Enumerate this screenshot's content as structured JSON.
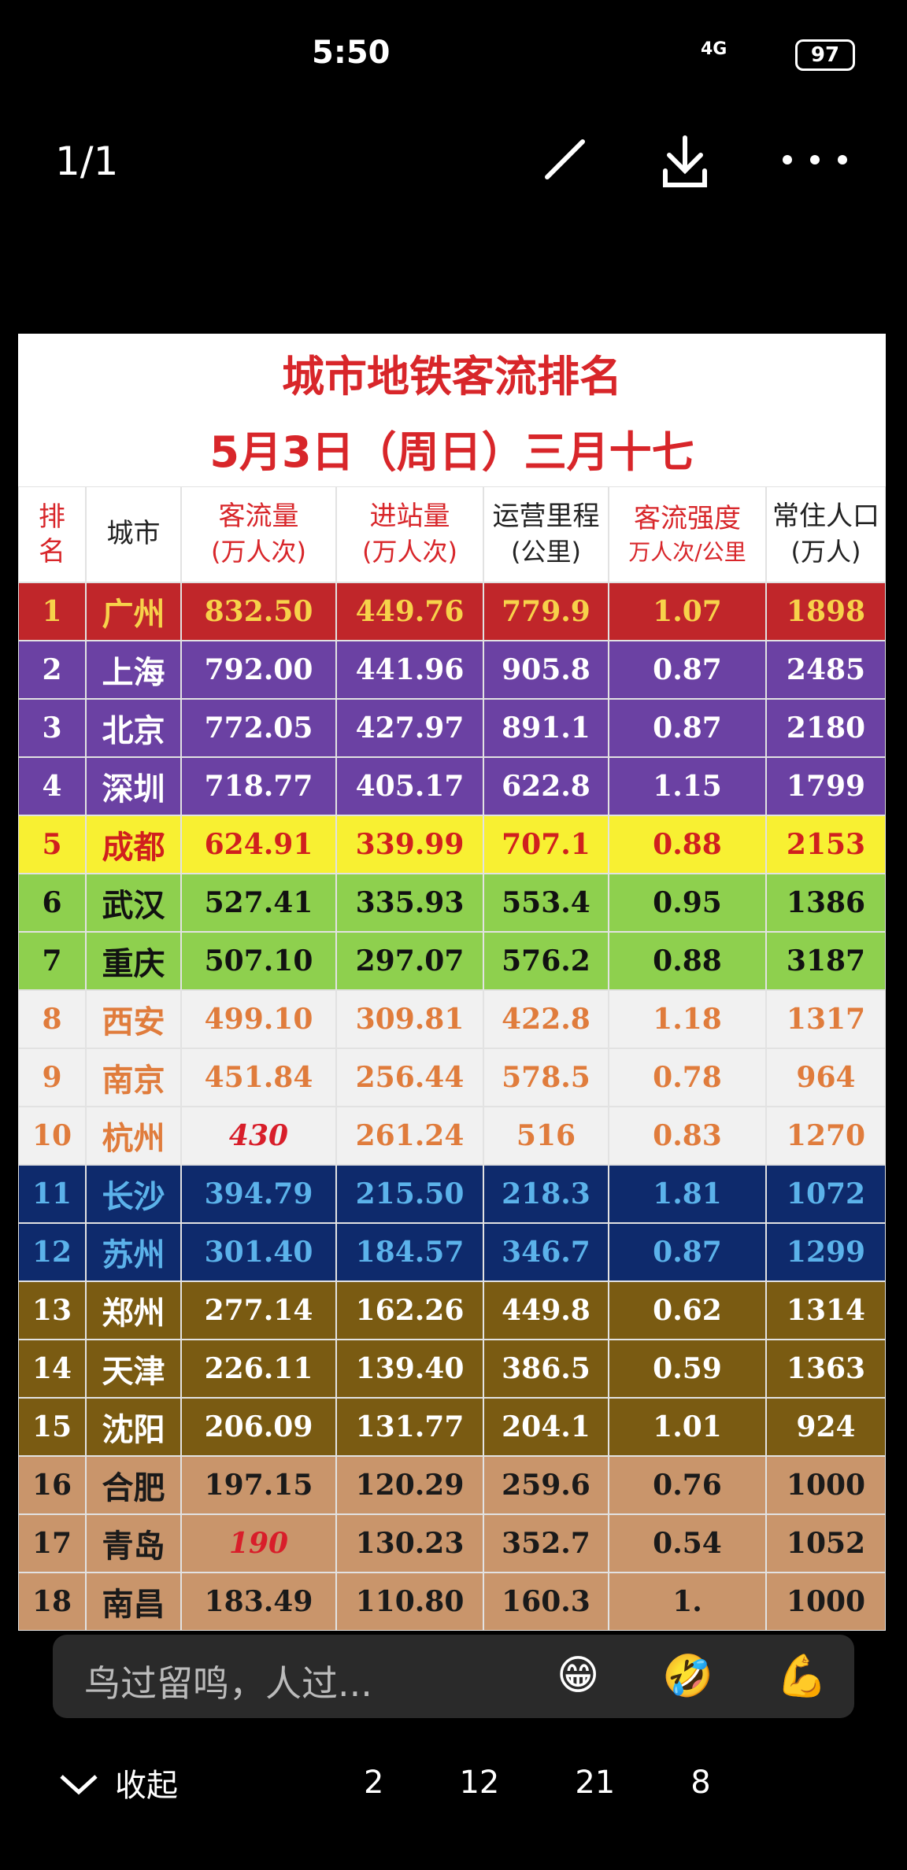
{
  "status_bar": {
    "time": "5:50",
    "network": "4G",
    "battery": "97"
  },
  "viewer": {
    "counter": "1/1"
  },
  "table": {
    "title": "城市地铁客流排名",
    "subtitle": "5月3日（周日）三月十七",
    "header": [
      {
        "text": "排名",
        "color": "#d8262a"
      },
      {
        "text": "城市",
        "color": "#222222"
      },
      {
        "text": "客流量",
        "sub": "(万人次)",
        "color": "#d8262a"
      },
      {
        "text": "进站量",
        "sub": "(万人次)",
        "color": "#d8262a"
      },
      {
        "text": "运营里程",
        "sub": "(公里)",
        "color": "#222222"
      },
      {
        "text": "客流强度",
        "sub": "万人次/公里",
        "color": "#d8262a"
      },
      {
        "text": "常住人口",
        "sub": "(万人)",
        "color": "#222222"
      }
    ],
    "rows": [
      {
        "bg": "#c0262a",
        "fg": "#f7d24a",
        "cells": [
          "1",
          "广州",
          "832.50",
          "449.76",
          "779.9",
          "1.07",
          "1898"
        ]
      },
      {
        "bg": "#6b41a3",
        "fg": "#ffffff",
        "cells": [
          "2",
          "上海",
          "792.00",
          "441.96",
          "905.8",
          "0.87",
          "2485"
        ]
      },
      {
        "bg": "#6b41a3",
        "fg": "#ffffff",
        "cells": [
          "3",
          "北京",
          "772.05",
          "427.97",
          "891.1",
          "0.87",
          "2180"
        ]
      },
      {
        "bg": "#6b41a3",
        "fg": "#ffffff",
        "cells": [
          "4",
          "深圳",
          "718.77",
          "405.17",
          "622.8",
          "1.15",
          "1799"
        ]
      },
      {
        "bg": "#f8f032",
        "fg": "#d0201e",
        "cells": [
          "5",
          "成都",
          "624.91",
          "339.99",
          "707.1",
          "0.88",
          "2153"
        ]
      },
      {
        "bg": "#8ed04e",
        "fg": "#111111",
        "cells": [
          "6",
          "武汉",
          "527.41",
          "335.93",
          "553.4",
          "0.95",
          "1386"
        ]
      },
      {
        "bg": "#8ed04e",
        "fg": "#111111",
        "cells": [
          "7",
          "重庆",
          "507.10",
          "297.07",
          "576.2",
          "0.88",
          "3187"
        ]
      },
      {
        "bg": "#f1f1f1",
        "fg": "#e07c3c",
        "cells": [
          "8",
          "西安",
          "499.10",
          "309.81",
          "422.8",
          "1.18",
          "1317"
        ]
      },
      {
        "bg": "#f1f1f1",
        "fg": "#e07c3c",
        "cells": [
          "9",
          "南京",
          "451.84",
          "256.44",
          "578.5",
          "0.78",
          "964"
        ]
      },
      {
        "bg": "#f1f1f1",
        "fg": "#e07c3c",
        "cells": [
          "10",
          "杭州",
          {
            "text": "430",
            "color": "#d81e2a",
            "italic": true
          },
          "261.24",
          "516",
          "0.83",
          "1270"
        ]
      },
      {
        "bg": "#0e2a6c",
        "fg": "#5bb2ea",
        "cells": [
          "11",
          "长沙",
          "394.79",
          "215.50",
          "218.3",
          "1.81",
          "1072"
        ]
      },
      {
        "bg": "#0e2a6c",
        "fg": "#5bb2ea",
        "cells": [
          "12",
          "苏州",
          "301.40",
          "184.57",
          "346.7",
          "0.87",
          "1299"
        ]
      },
      {
        "bg": "#7a5b12",
        "fg": "#ffffff",
        "cells": [
          "13",
          "郑州",
          "277.14",
          "162.26",
          "449.8",
          "0.62",
          "1314"
        ]
      },
      {
        "bg": "#7a5b12",
        "fg": "#ffffff",
        "cells": [
          "14",
          "天津",
          "226.11",
          "139.40",
          "386.5",
          "0.59",
          "1363"
        ]
      },
      {
        "bg": "#7a5b12",
        "fg": "#ffffff",
        "cells": [
          "15",
          "沈阳",
          "206.09",
          "131.77",
          "204.1",
          "1.01",
          "924"
        ]
      },
      {
        "bg": "#c9956b",
        "fg": "#1a1a1a",
        "cells": [
          "16",
          "合肥",
          "197.15",
          "120.29",
          "259.6",
          "0.76",
          "1000"
        ]
      },
      {
        "bg": "#c9956b",
        "fg": "#1a1a1a",
        "cells": [
          "17",
          "青岛",
          {
            "text": "190",
            "color": "#d81e2a",
            "italic": true
          },
          "130.23",
          "352.7",
          "0.54",
          "1052"
        ]
      },
      {
        "bg": "#c9956b",
        "fg": "#1a1a1a",
        "cells": [
          "18",
          "南昌",
          "183.49",
          "110.80",
          "160.3",
          "1.",
          "1000"
        ]
      }
    ]
  },
  "comment_bar": {
    "placeholder": "鸟过留鸣，人过...",
    "emojis": [
      "😁",
      "🤣",
      "💪"
    ]
  },
  "actions": {
    "collapse": "收起",
    "share": "2",
    "comment": "12",
    "like": "21",
    "favorite": "8"
  }
}
